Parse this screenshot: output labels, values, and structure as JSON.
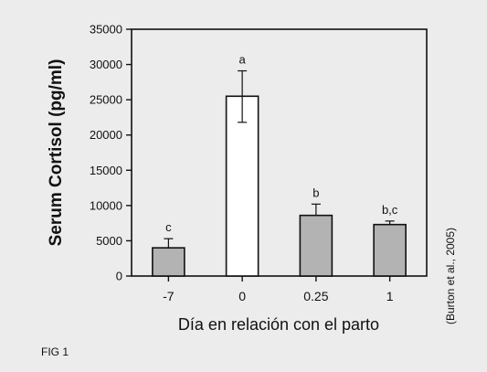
{
  "figure_label": "FIG 1",
  "citation": "(Burton et al., 2005)",
  "colors": {
    "background": "#ececec",
    "bar_filled": "#b3b3b3",
    "bar_empty": "#ffffff",
    "stroke": "#111111"
  },
  "chart_data": {
    "type": "bar",
    "title": "",
    "xlabel": "Día en relación con el parto",
    "ylabel": "Serum Cortisol (pg/ml)",
    "ylim": [
      0,
      35000
    ],
    "yticks": [
      0,
      5000,
      10000,
      15000,
      20000,
      25000,
      30000,
      35000
    ],
    "ytick_labels": [
      "0",
      "5000",
      "10000",
      "15000",
      "20000",
      "25000",
      "30000",
      "35000"
    ],
    "categories": [
      "-7",
      "0",
      "0.25",
      "1"
    ],
    "values": [
      4000,
      25500,
      8600,
      7300
    ],
    "error_upper": [
      5300,
      29100,
      10200,
      7800
    ],
    "error_lower": [
      null,
      21800,
      null,
      null
    ],
    "significance_labels": [
      "c",
      "a",
      "b",
      "b,c"
    ],
    "bar_fill": [
      "filled",
      "empty",
      "filled",
      "filled"
    ],
    "grid": false,
    "legend": "none"
  }
}
